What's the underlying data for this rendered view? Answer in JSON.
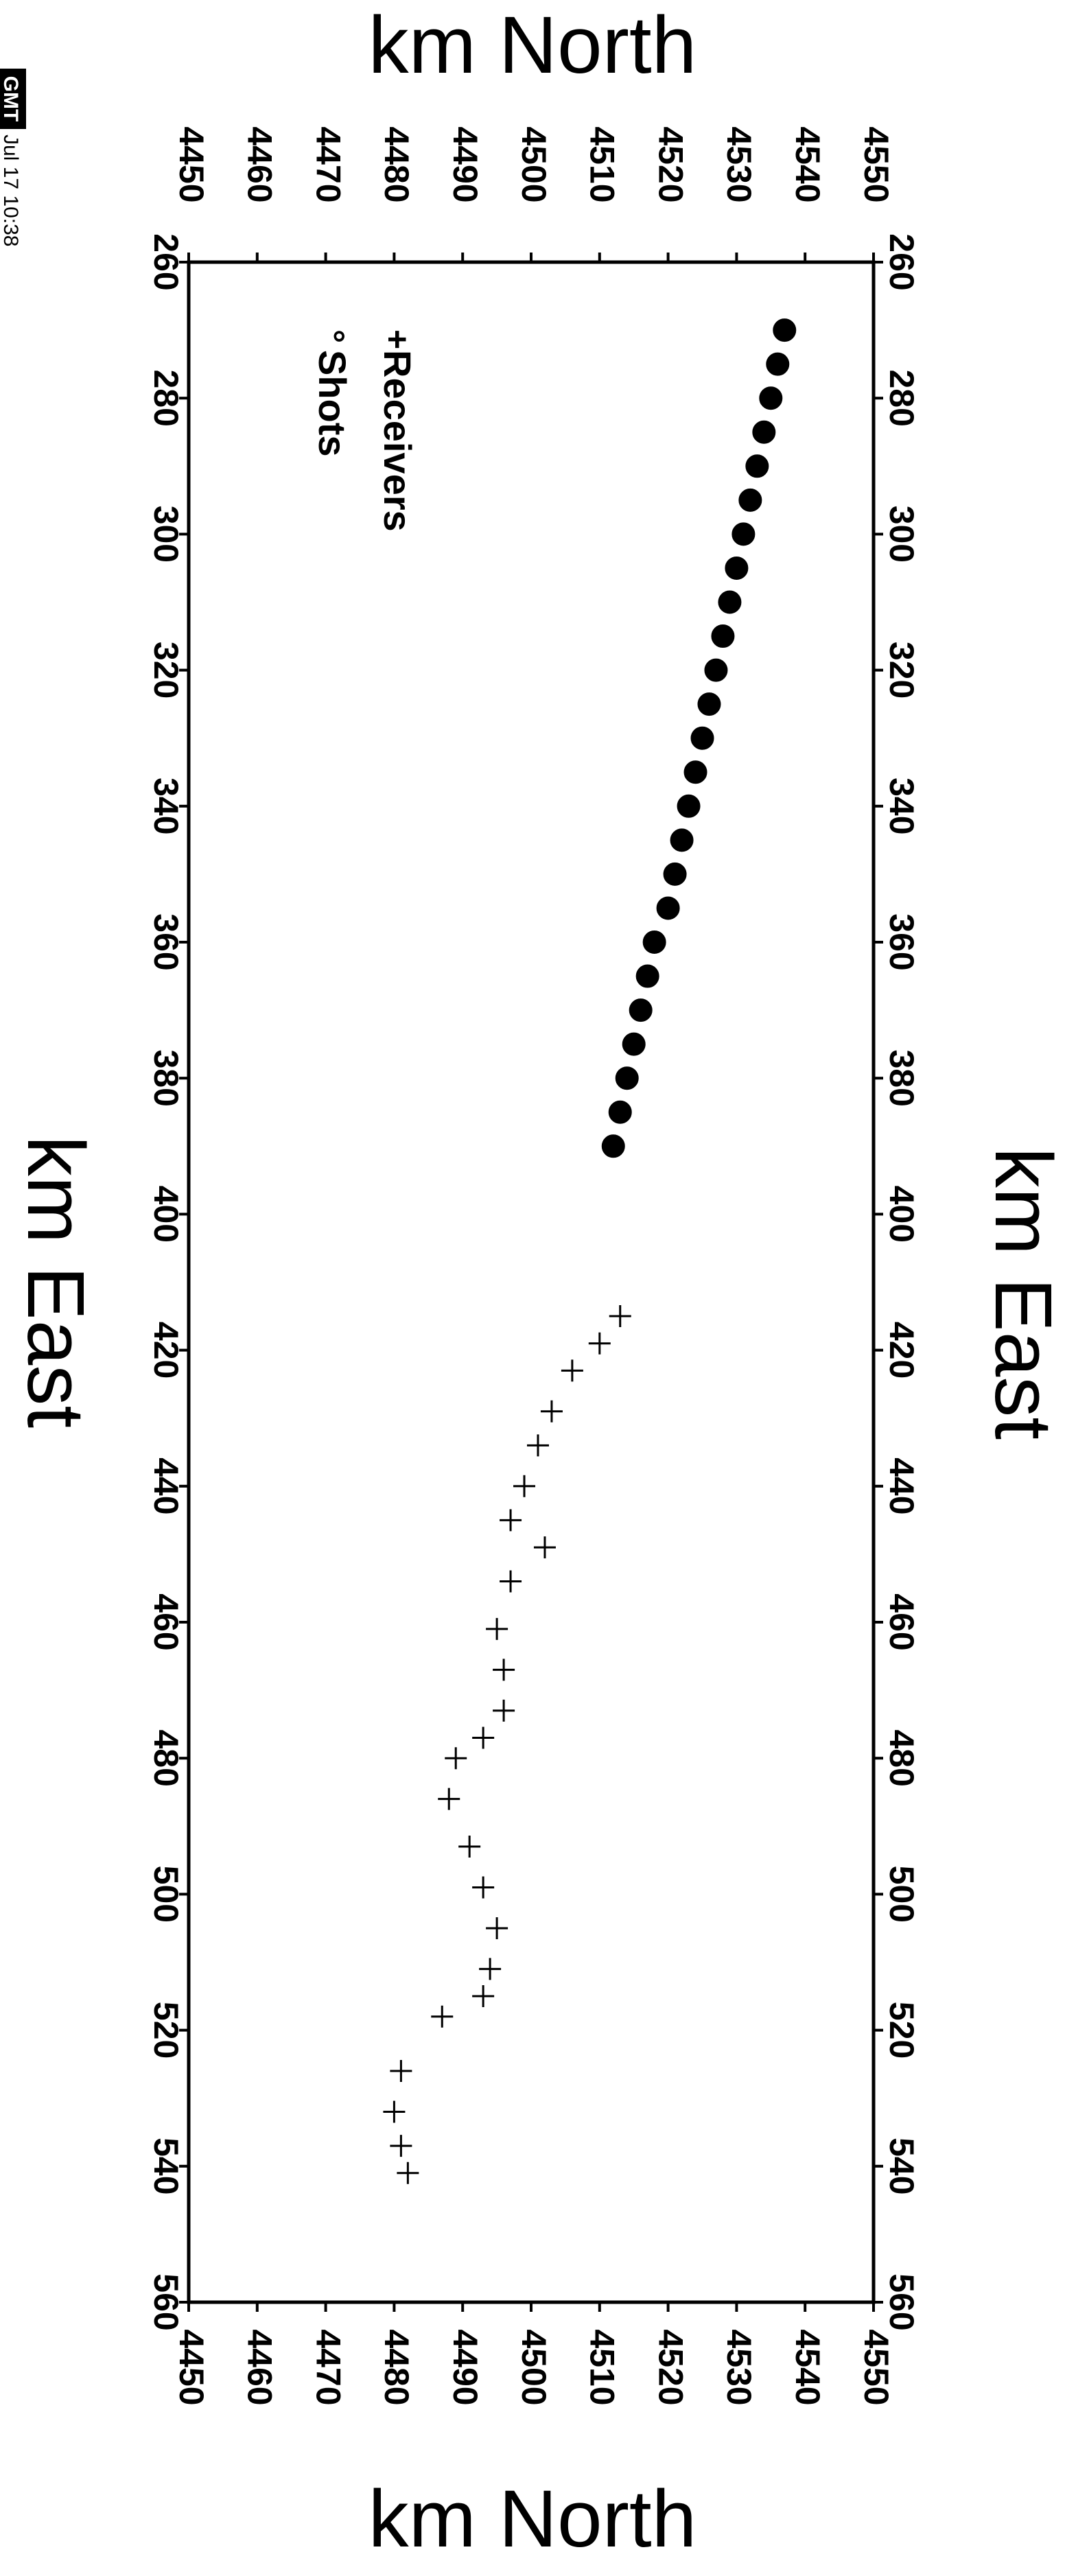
{
  "chart_data": {
    "type": "scatter",
    "stamp": "GMT",
    "stamp_date": "Jul 17 10:38",
    "x_label": "km East",
    "y_label": "km North",
    "xlim": [
      260,
      560
    ],
    "xticks": [
      260,
      280,
      300,
      320,
      340,
      360,
      380,
      400,
      420,
      440,
      460,
      480,
      500,
      520,
      540,
      560
    ],
    "ylim": [
      4450,
      4550
    ],
    "yticks": [
      4450,
      4460,
      4470,
      4480,
      4490,
      4500,
      4510,
      4520,
      4530,
      4540,
      4550
    ],
    "series": [
      {
        "name": "Receivers",
        "marker": "+",
        "color": "#000000",
        "x": [
          415,
          419,
          423,
          429,
          434,
          440,
          445,
          449,
          454,
          461,
          467,
          473,
          477,
          480,
          486,
          493,
          499,
          505,
          511,
          515,
          518,
          526,
          532,
          537,
          541
        ],
        "y": [
          4513,
          4510,
          4506,
          4503,
          4501,
          4499,
          4497,
          4502,
          4497,
          4495,
          4496,
          4496,
          4493,
          4489,
          4488,
          4491,
          4493,
          4495,
          4494,
          4493,
          4487,
          4481,
          4480,
          4481,
          4482
        ]
      },
      {
        "name": "Shots",
        "marker": "°",
        "color": "#000000",
        "x": [
          270,
          275,
          280,
          285,
          290,
          295,
          300,
          305,
          310,
          315,
          320,
          325,
          330,
          335,
          340,
          345,
          350,
          355,
          360,
          365,
          370,
          375,
          380,
          385,
          390
        ],
        "y": [
          4537,
          4536,
          4535,
          4534,
          4533,
          4532,
          4531,
          4530,
          4529,
          4528,
          4527,
          4526,
          4525,
          4524,
          4523,
          4522,
          4521,
          4520,
          4518,
          4517,
          4516,
          4515,
          4514,
          4513,
          4512
        ]
      }
    ]
  }
}
